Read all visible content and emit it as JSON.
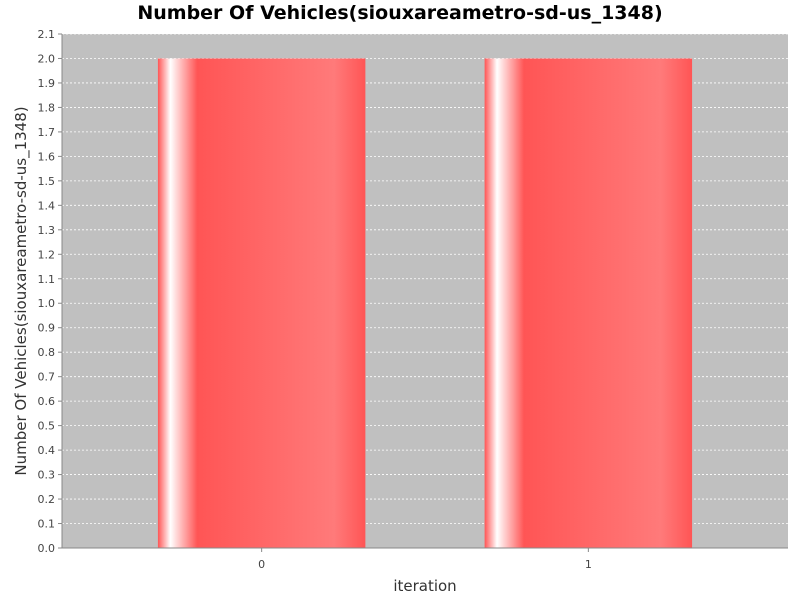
{
  "chart_data": {
    "type": "bar",
    "title": "Number Of Vehicles(siouxareametro-sd-us_1348)",
    "xlabel": "iteration",
    "ylabel": "Number Of Vehicles(siouxareametro-sd-us_1348)",
    "categories": [
      "0",
      "1"
    ],
    "values": [
      2.0,
      2.0
    ],
    "ylim": [
      0.0,
      2.1
    ],
    "yticks": [
      "0.0",
      "0.1",
      "0.2",
      "0.3",
      "0.4",
      "0.5",
      "0.6",
      "0.7",
      "0.8",
      "0.9",
      "1.0",
      "1.1",
      "1.2",
      "1.3",
      "1.4",
      "1.5",
      "1.6",
      "1.7",
      "1.8",
      "1.9",
      "2.0",
      "2.1"
    ],
    "grid": true,
    "colors": {
      "plot_bg": "#c0c0c0",
      "bar": "#ff5555",
      "grid": "#ffffff"
    }
  }
}
